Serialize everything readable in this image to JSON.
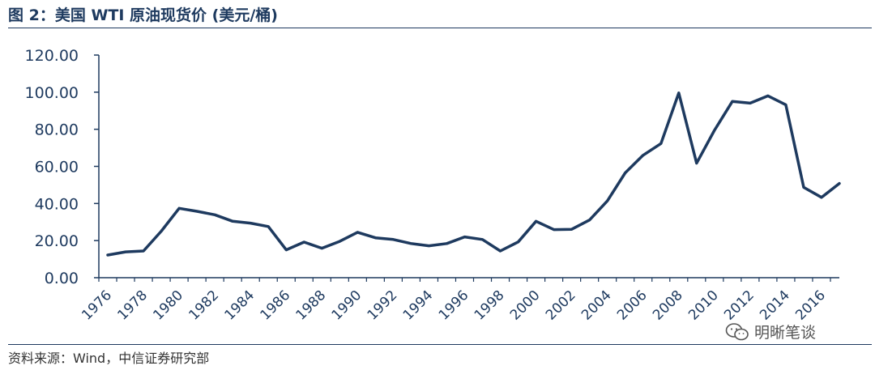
{
  "figure": {
    "title": "图 2：美国 WTI 原油现货价 (美元/桶)",
    "source": "资料来源：Wind，中信证券研究部",
    "watermark": "明晰笔谈",
    "watermark_icon": "wechat-icon"
  },
  "colors": {
    "line": "#1e3a5f",
    "axis": "#1e3a5f",
    "text": "#1e3a5f"
  },
  "chart_data": {
    "type": "line",
    "title": "美国 WTI 原油现货价 (美元/桶)",
    "xlabel": "",
    "ylabel": "",
    "ylim": [
      0,
      120
    ],
    "yticks": [
      "0.00",
      "20.00",
      "40.00",
      "60.00",
      "80.00",
      "100.00",
      "120.00"
    ],
    "xticks": [
      "1976",
      "1978",
      "1980",
      "1982",
      "1984",
      "1986",
      "1988",
      "1990",
      "1992",
      "1994",
      "1996",
      "1998",
      "2000",
      "2002",
      "2004",
      "2006",
      "2008",
      "2010",
      "2012",
      "2014",
      "2016"
    ],
    "grid": false,
    "legend": "none",
    "x": [
      1976,
      1977,
      1978,
      1979,
      1980,
      1981,
      1982,
      1983,
      1984,
      1985,
      1986,
      1987,
      1988,
      1989,
      1990,
      1991,
      1992,
      1993,
      1994,
      1995,
      1996,
      1997,
      1998,
      1999,
      2000,
      2001,
      2002,
      2003,
      2004,
      2005,
      2006,
      2007,
      2008,
      2009,
      2010,
      2011,
      2012,
      2013,
      2014,
      2015,
      2016,
      2017
    ],
    "series": [
      {
        "values": [
          12.2,
          13.9,
          14.4,
          25.1,
          37.4,
          35.8,
          33.9,
          30.4,
          29.4,
          27.6,
          15.0,
          19.2,
          15.9,
          19.6,
          24.5,
          21.5,
          20.6,
          18.4,
          17.2,
          18.4,
          22.0,
          20.6,
          14.4,
          19.3,
          30.4,
          25.9,
          26.1,
          31.1,
          41.4,
          56.5,
          66.0,
          72.3,
          99.6,
          61.7,
          79.4,
          95.0,
          94.1,
          98.0,
          93.2,
          48.7,
          43.3,
          50.8
        ]
      }
    ]
  }
}
